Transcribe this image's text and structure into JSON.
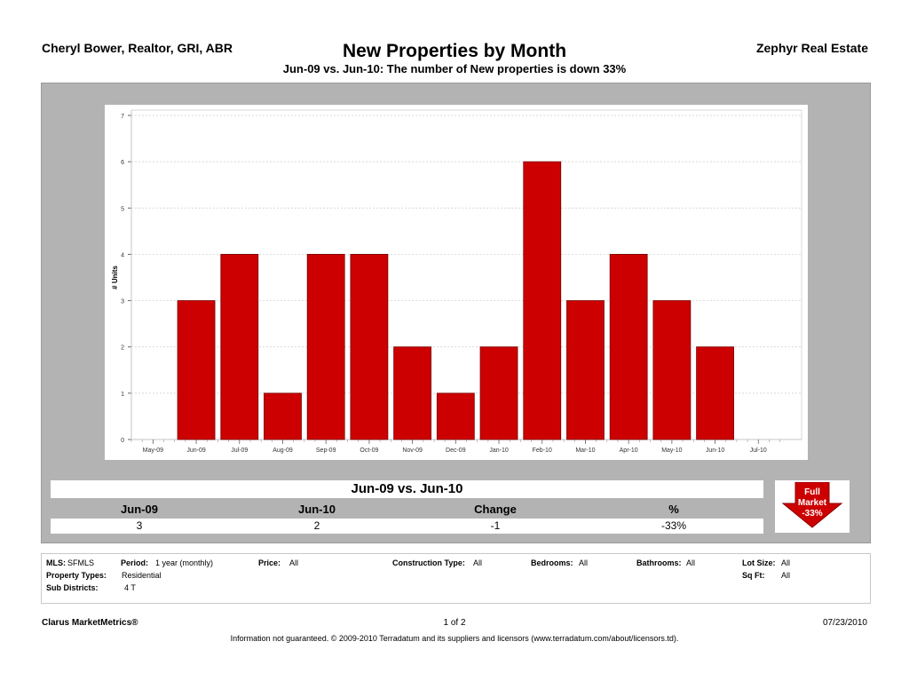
{
  "header": {
    "agent": "Cheryl Bower, Realtor, GRI, ABR",
    "title": "New Properties by Month",
    "subtitle": "Jun-09 vs. Jun-10: The number of New properties is down 33%",
    "company": "Zephyr Real Estate"
  },
  "chart_data": {
    "type": "bar",
    "categories": [
      "May-09",
      "Jun-09",
      "Jul-09",
      "Aug-09",
      "Sep-09",
      "Oct-09",
      "Nov-09",
      "Dec-09",
      "Jan-10",
      "Feb-10",
      "Mar-10",
      "Apr-10",
      "May-10",
      "Jun-10",
      "Jul-10"
    ],
    "series": [
      {
        "values": [
          null,
          3,
          4,
          1,
          4,
          4,
          2,
          1,
          2,
          6,
          3,
          4,
          3,
          2,
          null
        ]
      }
    ],
    "ylabel": "# Units",
    "yticks": [
      "0",
      "1",
      "2",
      "3",
      "4",
      "5",
      "6",
      "7"
    ],
    "ylim": [
      0,
      7
    ],
    "grid": true,
    "colors": {
      "bar": "#cc0000",
      "bar_edge": "#7a0000",
      "grid": "#cccccc"
    }
  },
  "summary": {
    "title": "Jun-09 vs. Jun-10",
    "headers": [
      "Jun-09",
      "Jun-10",
      "Change",
      "%"
    ],
    "values": [
      "3",
      "2",
      "-1",
      "-33%"
    ],
    "badge": {
      "line1": "Full",
      "line2": "Market",
      "line3": "-33%",
      "color": "#cc0000"
    }
  },
  "criteria": {
    "mls_label": "MLS:",
    "mls": "SFMLS",
    "period_label": "Period:",
    "period": "1 year (monthly)",
    "price_label": "Price:",
    "price": "All",
    "construction_label": "Construction Type:",
    "construction": "All",
    "bedrooms_label": "Bedrooms:",
    "bedrooms": "All",
    "bathrooms_label": "Bathrooms:",
    "bathrooms": "All",
    "lot_label": "Lot Size:",
    "lot": "All",
    "ptype_label": "Property Types:",
    "ptype": "Residential",
    "sqft_label": "Sq Ft:",
    "sqft": "All",
    "subd_label": "Sub Districts:",
    "subd": "4 T"
  },
  "footer": {
    "brand": "Clarus MarketMetrics®",
    "page": "1 of 2",
    "date": "07/23/2010",
    "disclaimer": "Information not guaranteed.  © 2009-2010 Terradatum and its suppliers and licensors (www.terradatum.com/about/licensors.td)."
  }
}
